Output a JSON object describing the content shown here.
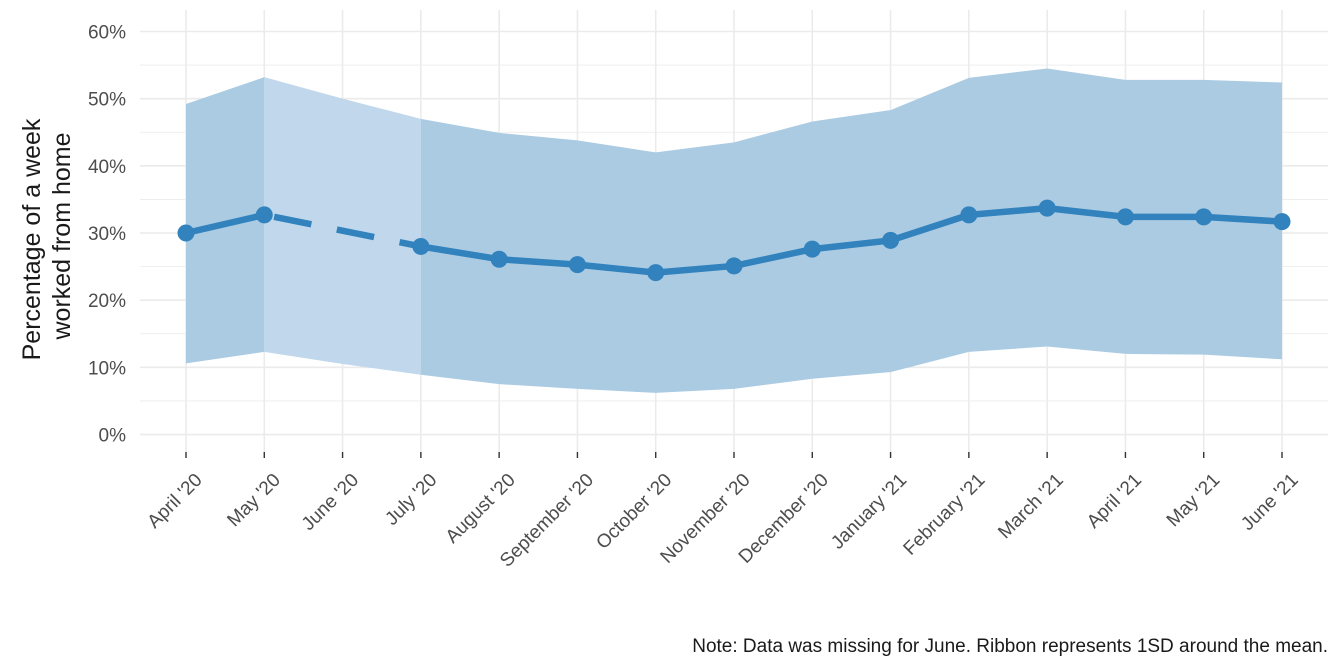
{
  "chart_data": {
    "type": "line",
    "title": "",
    "xlabel": "",
    "ylabel_lines": [
      "Percentage of a week",
      "worked from home"
    ],
    "caption": "Note: Data was missing for June. Ribbon represents 1SD around the mean.",
    "categories": [
      "April '20",
      "May '20",
      "June '20",
      "July '20",
      "August '20",
      "September '20",
      "October '20",
      "November '20",
      "December '20",
      "January '21",
      "February '21",
      "March '21",
      "April '21",
      "May '21",
      "June '21"
    ],
    "series": [
      {
        "values": [
          30.0,
          32.7,
          null,
          28.0,
          26.1,
          25.3,
          24.1,
          25.1,
          27.6,
          28.9,
          32.7,
          33.7,
          32.4,
          32.4,
          31.7
        ],
        "ribbon_lower": [
          10.6,
          12.3,
          10.5,
          8.9,
          7.5,
          6.8,
          6.2,
          6.8,
          8.3,
          9.3,
          12.3,
          13.1,
          12.0,
          11.9,
          11.2
        ],
        "ribbon_upper": [
          49.2,
          53.2,
          50.0,
          47.0,
          44.9,
          43.8,
          42.0,
          43.5,
          46.6,
          48.3,
          53.1,
          54.5,
          52.8,
          52.8,
          52.4
        ],
        "missing_index": 2
      }
    ],
    "y_ticks": [
      "0%",
      "10%",
      "20%",
      "30%",
      "40%",
      "50%",
      "60%"
    ],
    "ylim": [
      -2.6,
      63.2
    ],
    "grid": true,
    "legend": "none",
    "colors": {
      "line": "#3182bd",
      "ribbon": "#abcbe3",
      "ribbon_interpolated": "#c1d8ec",
      "grid": "#ebebeb"
    }
  }
}
